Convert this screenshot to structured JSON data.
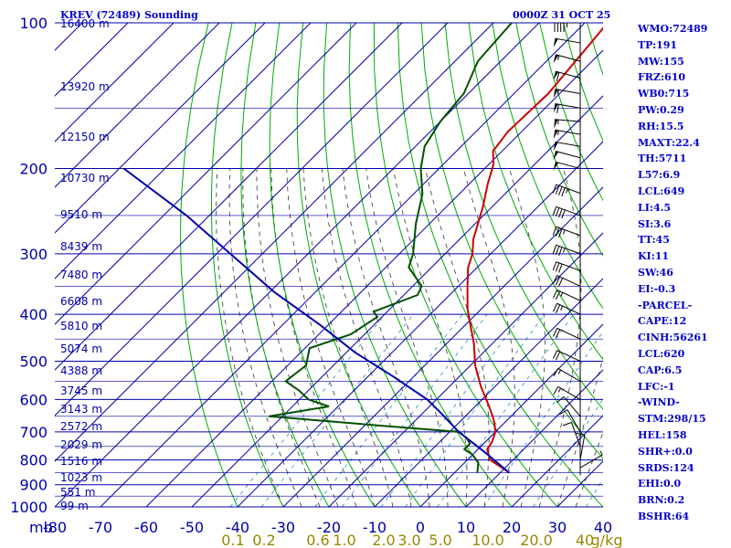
{
  "title_left": "KREV (72489) Sounding",
  "title_right": "0000Z 31 OCT 25",
  "chart_data": {
    "type": "line",
    "chart_kind": "skew-t sounding",
    "pressure_levels": [
      100,
      200,
      300,
      400,
      500,
      600,
      700,
      800,
      900,
      1000
    ],
    "temperature_ticks": [
      -80,
      -70,
      -60,
      -50,
      -40,
      -30,
      -20,
      -10,
      0,
      10,
      20,
      30,
      40
    ],
    "mixing_ratio_labels": [
      "0.1",
      "0.2",
      "0.6",
      "1.0",
      "2.0",
      "3.0",
      "5.0",
      "10.0",
      "20.0",
      "40",
      "g/kg"
    ],
    "axis_unit_label": "mb",
    "height_labels": [
      "16400 m",
      "13920 m",
      "12150 m",
      "10730 m",
      "9510 m",
      "8439 m",
      "7480 m",
      "6608 m",
      "5810 m",
      "5074 m",
      "4388 m",
      "3745 m",
      "3143 m",
      "2572 m",
      "2029 m",
      "1516 m",
      "1023 m",
      "551 m",
      "99 m"
    ],
    "series": [
      {
        "role": "temperature",
        "color": "#cc0000",
        "points": [
          [
            -65,
            100
          ],
          [
            -62.5,
            140
          ],
          [
            -63,
            168
          ],
          [
            -62,
            184
          ],
          [
            -59,
            196
          ],
          [
            -56,
            215
          ],
          [
            -52,
            240
          ],
          [
            -47,
            280
          ],
          [
            -44,
            300
          ],
          [
            -42,
            320
          ],
          [
            -38,
            350
          ],
          [
            -33,
            390
          ],
          [
            -29,
            420
          ],
          [
            -24,
            460
          ],
          [
            -19,
            510
          ],
          [
            -13,
            565
          ],
          [
            -8,
            610
          ],
          [
            -4,
            650
          ],
          [
            -2,
            673
          ],
          [
            0,
            700
          ],
          [
            1.5,
            735
          ],
          [
            2,
            760
          ],
          [
            5,
            800
          ],
          [
            10,
            835
          ],
          [
            12,
            850
          ]
        ]
      },
      {
        "role": "dewpoint",
        "color": "#005000",
        "points": [
          [
            -86,
            100
          ],
          [
            -85,
            120
          ],
          [
            -81,
            140
          ],
          [
            -80,
            160
          ],
          [
            -78,
            180
          ],
          [
            -74,
            200
          ],
          [
            -68,
            226
          ],
          [
            -63,
            260
          ],
          [
            -57,
            300
          ],
          [
            -55,
            320
          ],
          [
            -48,
            350
          ],
          [
            -47,
            365
          ],
          [
            -53,
            395
          ],
          [
            -51,
            405
          ],
          [
            -53,
            440
          ],
          [
            -59,
            470
          ],
          [
            -56,
            510
          ],
          [
            -57,
            550
          ],
          [
            -52,
            575
          ],
          [
            -48,
            600
          ],
          [
            -45,
            610
          ],
          [
            -42,
            620
          ],
          [
            -53,
            650
          ],
          [
            -26,
            680
          ],
          [
            -8,
            700
          ],
          [
            -5,
            720
          ],
          [
            -3,
            740
          ],
          [
            -3,
            760
          ],
          [
            0,
            780
          ],
          [
            3,
            810
          ],
          [
            4,
            830
          ],
          [
            5,
            850
          ]
        ]
      },
      {
        "role": "parcel",
        "color": "#0000aa",
        "points": [
          [
            12,
            850
          ],
          [
            2,
            770
          ],
          [
            -8,
            700
          ],
          [
            -16,
            640
          ],
          [
            -22,
            600
          ],
          [
            -34,
            540
          ],
          [
            -48,
            480
          ],
          [
            -62,
            420
          ],
          [
            -79,
            360
          ],
          [
            -97,
            300
          ],
          [
            -115,
            250
          ],
          [
            -139,
            200
          ]
        ]
      }
    ],
    "wind_barbs": [
      {
        "pressure": 100,
        "direction": 270,
        "speed": 45
      },
      {
        "pressure": 110,
        "direction": 280,
        "speed": 50
      },
      {
        "pressure": 120,
        "direction": 285,
        "speed": 55
      },
      {
        "pressure": 130,
        "direction": 285,
        "speed": 60
      },
      {
        "pressure": 140,
        "direction": 280,
        "speed": 55
      },
      {
        "pressure": 150,
        "direction": 280,
        "speed": 60
      },
      {
        "pressure": 160,
        "direction": 275,
        "speed": 55
      },
      {
        "pressure": 170,
        "direction": 280,
        "speed": 55
      },
      {
        "pressure": 180,
        "direction": 280,
        "speed": 50
      },
      {
        "pressure": 190,
        "direction": 285,
        "speed": 50
      },
      {
        "pressure": 200,
        "direction": 285,
        "speed": 50
      },
      {
        "pressure": 225,
        "direction": 290,
        "speed": 45
      },
      {
        "pressure": 250,
        "direction": 290,
        "speed": 40
      },
      {
        "pressure": 275,
        "direction": 290,
        "speed": 35
      },
      {
        "pressure": 300,
        "direction": 290,
        "speed": 35
      },
      {
        "pressure": 325,
        "direction": 290,
        "speed": 30
      },
      {
        "pressure": 350,
        "direction": 295,
        "speed": 30
      },
      {
        "pressure": 375,
        "direction": 295,
        "speed": 25
      },
      {
        "pressure": 400,
        "direction": 295,
        "speed": 25
      },
      {
        "pressure": 450,
        "direction": 295,
        "speed": 20
      },
      {
        "pressure": 500,
        "direction": 295,
        "speed": 20
      },
      {
        "pressure": 550,
        "direction": 300,
        "speed": 15
      },
      {
        "pressure": 600,
        "direction": 300,
        "speed": 15
      },
      {
        "pressure": 650,
        "direction": 320,
        "speed": 10
      },
      {
        "pressure": 700,
        "direction": 330,
        "speed": 10
      },
      {
        "pressure": 750,
        "direction": 340,
        "speed": 10
      },
      {
        "pressure": 800,
        "direction": 10,
        "speed": 10
      },
      {
        "pressure": 830,
        "direction": 60,
        "speed": 5
      }
    ]
  },
  "sidebar": [
    "WMO:72489",
    "TP:191",
    "MW:155",
    "FRZ:610",
    "WB0:715",
    "PW:0.29",
    "RH:15.5",
    "MAXT:22.4",
    "TH:5711",
    "L57:6.9",
    "LCL:649",
    "LI:4.5",
    "SI:3.6",
    "TT:45",
    "KI:11",
    "SW:46",
    "EI:-0.3",
    "-PARCEL-",
    "CAPE:12",
    "CINH:56261",
    "LCL:620",
    "CAP:6.5",
    "LFC:-1",
    "-WIND-",
    "STM:298/15",
    "HEL:158",
    "SHR+:0.0",
    "SRDS:124",
    "EHI:0.0",
    "BRN:0.2",
    "BSHR:64"
  ],
  "colors": {
    "isobar": "#0000aa",
    "isotherm": "#0000aa",
    "dry_adiabat": "#00aa00",
    "moist_adiabat": "#333333",
    "mixing_ratio": "#2288cc",
    "label_blue": "#0000cc",
    "mixing_label": "#998800"
  }
}
